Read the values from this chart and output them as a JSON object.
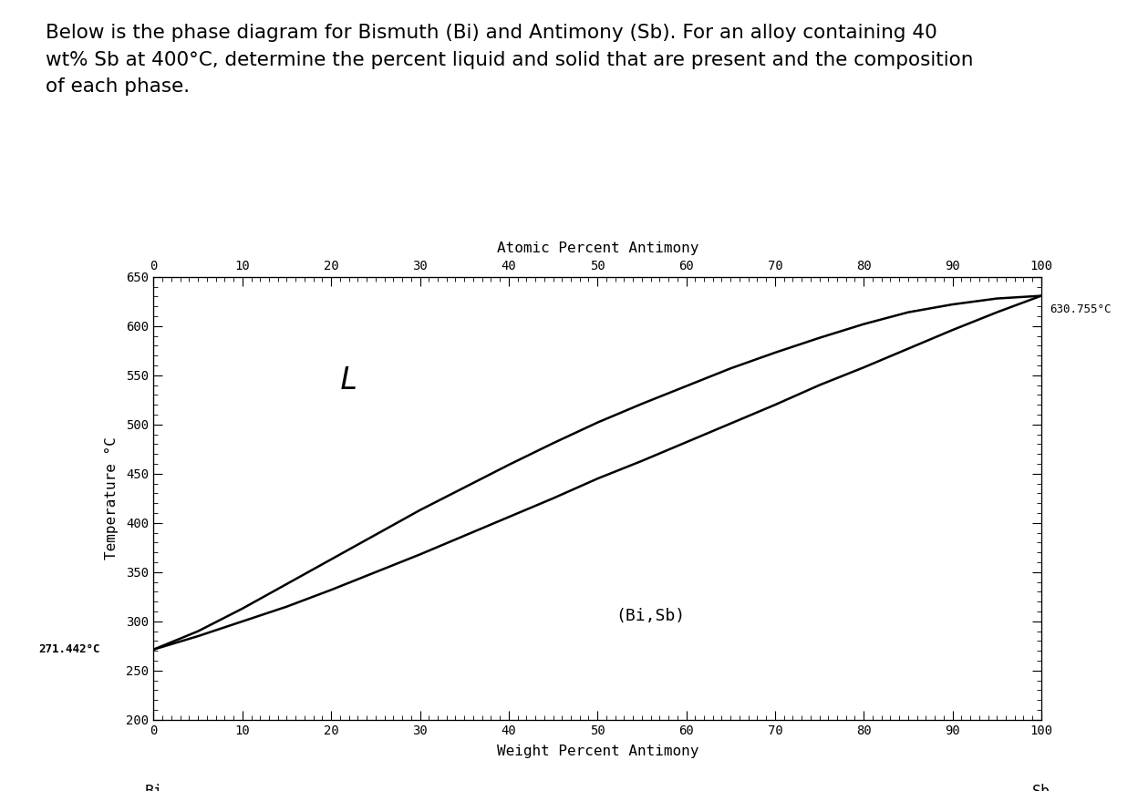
{
  "title_text": "Below is the phase diagram for Bismuth (Bi) and Antimony (Sb). For an alloy containing 40\nwt% Sb at 400°C, determine the percent liquid and solid that are present and the composition\nof each phase.",
  "title_fontsize": 15.5,
  "xlabel_bottom": "Weight Percent Antimony",
  "xlabel_top": "Atomic Percent Antimony",
  "ylabel": "Temperature °C",
  "x_label_left": "Bi",
  "x_label_right": "Sb",
  "ylim": [
    200,
    650
  ],
  "xlim": [
    0,
    100
  ],
  "yticks": [
    200,
    250,
    300,
    350,
    400,
    450,
    500,
    550,
    600,
    650
  ],
  "xticks": [
    0,
    10,
    20,
    30,
    40,
    50,
    60,
    70,
    80,
    90,
    100
  ],
  "T_Bi": 271.442,
  "T_Sb": 630.755,
  "label_Bi_temp": "271.442°C",
  "label_Sb_temp": "630.755°C",
  "label_L": "L",
  "label_solid": "(Bi,Sb)",
  "liquidus_x": [
    0,
    5,
    10,
    15,
    20,
    25,
    30,
    35,
    40,
    45,
    50,
    55,
    60,
    65,
    70,
    75,
    80,
    85,
    90,
    95,
    100
  ],
  "liquidus_y": [
    271.442,
    285,
    300,
    315,
    332,
    350,
    368,
    387,
    406,
    425,
    445,
    463,
    482,
    501,
    520,
    540,
    558,
    577,
    596,
    614,
    630.755
  ],
  "solidus_x": [
    0,
    5,
    10,
    15,
    20,
    25,
    30,
    35,
    40,
    45,
    50,
    55,
    60,
    65,
    70,
    75,
    80,
    85,
    90,
    95,
    100
  ],
  "solidus_y": [
    271.442,
    290,
    313,
    338,
    363,
    388,
    413,
    436,
    459,
    481,
    502,
    521,
    539,
    557,
    573,
    588,
    602,
    614,
    622,
    628,
    630.755
  ],
  "line_color": "#000000",
  "line_width": 1.8,
  "bg_color": "#ffffff"
}
